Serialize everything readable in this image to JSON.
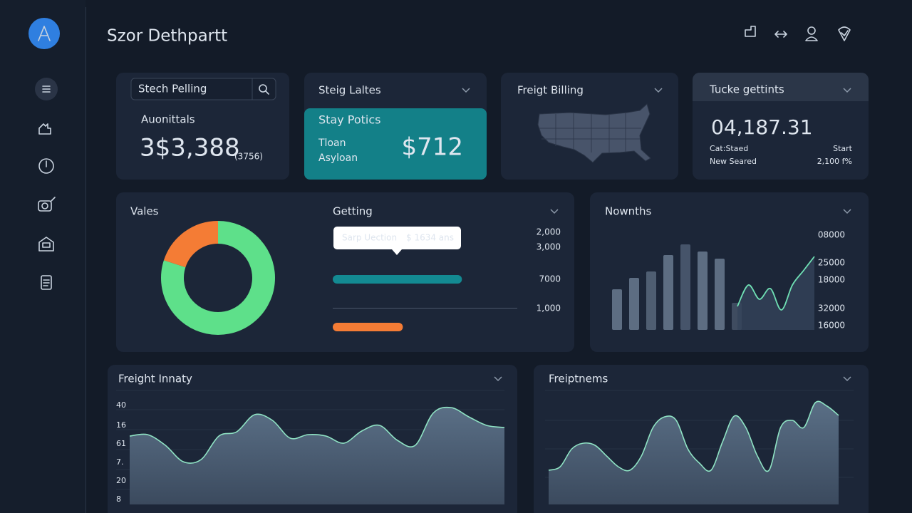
{
  "header": {
    "title": "Szor Dethpartt"
  },
  "search_card": {
    "placeholder": "Stech Pelling",
    "label": "Auonittals",
    "value": "3$3,388",
    "sub": "(3756)"
  },
  "steig_card": {
    "title": "Steig Laltes",
    "highlight_title": "Stay Potics",
    "lines": [
      "Tloan",
      "Asyloan"
    ],
    "value": "$712"
  },
  "billing_card": {
    "title": "Freigt Billing"
  },
  "tucke_card": {
    "title": "Tucke gettints",
    "value": "04,187.31",
    "rows": [
      [
        "Cat:Staed",
        "Start"
      ],
      [
        "New Seared",
        "2,100 f%"
      ]
    ]
  },
  "vales_panel": {
    "title": "Vales",
    "donut": {
      "values": [
        80,
        20
      ],
      "colors": [
        "#5ee08a",
        "#f47c35"
      ]
    }
  },
  "getting_panel": {
    "title": "Getting",
    "tooltip": {
      "label": "Sarp Uection",
      "value": "$ 1634 ans"
    },
    "bars": {
      "values": [
        70,
        38
      ],
      "colors": [
        "#138a92",
        "#f47c35"
      ],
      "xlim": [
        0,
        100
      ]
    },
    "axis_labels": [
      "2,000",
      "3,000",
      "7000",
      "1,000"
    ]
  },
  "nownths_panel": {
    "title": "Nownths",
    "bars": [
      57,
      73,
      82,
      105,
      120,
      110,
      100,
      38
    ],
    "bar_colors": [
      "#5d6d82",
      "#5d6d82",
      "#4f5e72",
      "#5d6d82",
      "#46546a",
      "#5d6d82",
      "#5d6d82",
      "#3f4c60"
    ],
    "line": [
      33,
      63,
      43,
      58,
      28,
      63,
      83,
      103
    ],
    "ylim": [
      0,
      130
    ],
    "axis_labels": [
      "08000",
      "25000",
      "18000",
      "32000",
      "16000"
    ]
  },
  "freight_panel": {
    "title": "Freight Innaty",
    "axis_labels": [
      "40",
      "16",
      "61",
      "7.",
      "20",
      "8"
    ],
    "values": [
      96,
      98,
      83,
      60,
      63,
      96,
      102,
      126,
      118,
      93,
      98,
      96,
      86,
      103,
      111,
      90,
      83,
      128,
      136,
      123,
      111,
      108
    ],
    "ylim": [
      0,
      140
    ]
  },
  "freiptnems_panel": {
    "title": "Freiptnems",
    "values": [
      48,
      53,
      78,
      86,
      83,
      68,
      53,
      48,
      68,
      108,
      123,
      118,
      78,
      58,
      48,
      88,
      124,
      108,
      68,
      48,
      108,
      118,
      108,
      143,
      138,
      125
    ],
    "ylim": [
      0,
      150
    ]
  }
}
